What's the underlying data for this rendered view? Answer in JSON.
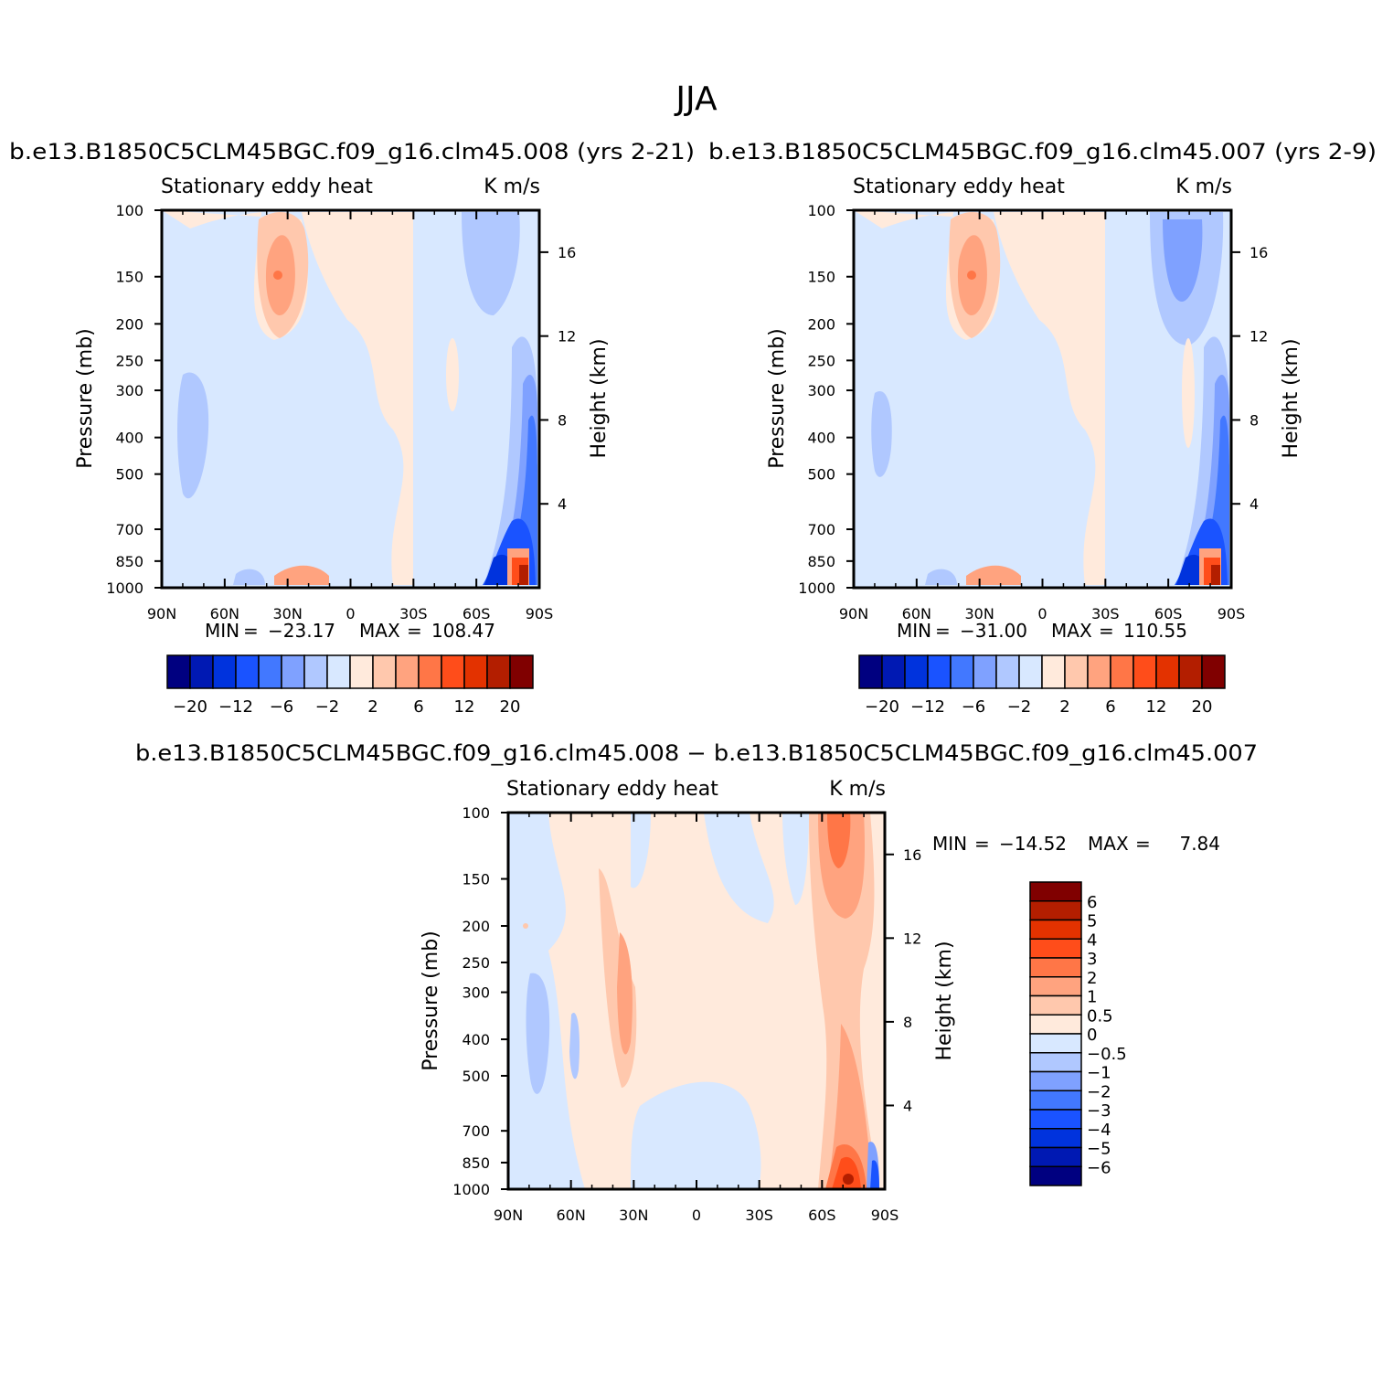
{
  "figure": {
    "title": "JJA",
    "colors": [
      "#000080",
      "#0019b3",
      "#0033dd",
      "#1a53ff",
      "#4278ff",
      "#7fa1ff",
      "#b0c8ff",
      "#d8e8ff",
      "#ffeadc",
      "#ffc8ad",
      "#ffa37f",
      "#ff7647",
      "#ff4d1a",
      "#e33200",
      "#b31e00",
      "#800000"
    ]
  },
  "chart_data": [
    {
      "type": "contour",
      "title": "b.e13.B1850C5CLM45BGC.f09_g16.clm45.008 (yrs 2-21)",
      "subtitle_left": "Stationary eddy heat",
      "subtitle_right": "K m/s",
      "xlabel": "",
      "ylabel": "Pressure (mb)",
      "ylabel_right": "Height (km)",
      "x_ticks": [
        "90N",
        "60N",
        "30N",
        "0",
        "30S",
        "60S",
        "90S"
      ],
      "y_ticks": [
        "100",
        "150",
        "200",
        "250",
        "300",
        "400",
        "500",
        "700",
        "850",
        "1000"
      ],
      "y_right_ticks": [
        "16",
        "12",
        "8",
        "4"
      ],
      "min_label": "MIN",
      "min_value": "−23.17",
      "max_label": "MAX",
      "max_value": "108.47",
      "levels": [
        "−20",
        "−12",
        "−6",
        "−2",
        "2",
        "6",
        "12",
        "20"
      ],
      "features": [
        {
          "lat": 30,
          "p": 155,
          "value": 9,
          "note": "positive core"
        },
        {
          "lat": -85,
          "p": 500,
          "value": -14,
          "note": "polar negative column"
        },
        {
          "lat": -87,
          "p": 900,
          "value": 40,
          "note": "surface maximum"
        }
      ]
    },
    {
      "type": "contour",
      "title": "b.e13.B1850C5CLM45BGC.f09_g16.clm45.007 (yrs 2-9)",
      "subtitle_left": "Stationary eddy heat",
      "subtitle_right": "K m/s",
      "xlabel": "",
      "ylabel": "Pressure (mb)",
      "ylabel_right": "Height (km)",
      "x_ticks": [
        "90N",
        "60N",
        "30N",
        "0",
        "30S",
        "60S",
        "90S"
      ],
      "y_ticks": [
        "100",
        "150",
        "200",
        "250",
        "300",
        "400",
        "500",
        "700",
        "850",
        "1000"
      ],
      "y_right_ticks": [
        "16",
        "12",
        "8",
        "4"
      ],
      "min_label": "MIN",
      "min_value": "−31.00",
      "max_label": "MAX",
      "max_value": "110.55",
      "levels": [
        "−20",
        "−12",
        "−6",
        "−2",
        "2",
        "6",
        "12",
        "20"
      ]
    },
    {
      "type": "contour",
      "title": "b.e13.B1850C5CLM45BGC.f09_g16.clm45.008 − b.e13.B1850C5CLM45BGC.f09_g16.clm45.007",
      "subtitle_left": "Stationary eddy heat",
      "subtitle_right": "K m/s",
      "xlabel": "",
      "ylabel": "Pressure (mb)",
      "ylabel_right": "Height (km)",
      "x_ticks": [
        "90N",
        "60N",
        "30N",
        "0",
        "30S",
        "60S",
        "90S"
      ],
      "y_ticks": [
        "100",
        "150",
        "200",
        "250",
        "300",
        "400",
        "500",
        "700",
        "850",
        "1000"
      ],
      "y_right_ticks": [
        "16",
        "12",
        "8",
        "4"
      ],
      "min_label": "MIN",
      "min_value": "−14.52",
      "max_label": "MAX",
      "max_value": "7.84",
      "levels": [
        "6",
        "5",
        "4",
        "3",
        "2",
        "1",
        "0.5",
        "0",
        "−0.5",
        "−1",
        "−2",
        "−3",
        "−4",
        "−5",
        "−6"
      ]
    }
  ]
}
